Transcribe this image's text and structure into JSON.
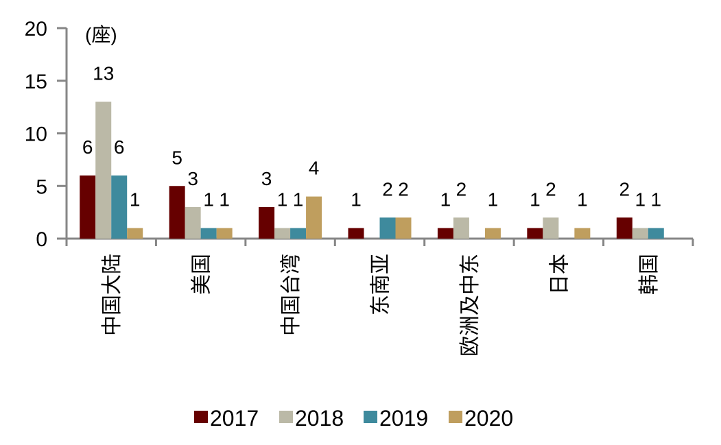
{
  "chart_data": {
    "type": "bar",
    "title": "",
    "unit_label": "(座)",
    "xlabel": "",
    "ylabel": "",
    "ylim": [
      0,
      20
    ],
    "yticks": [
      0,
      5,
      10,
      15,
      20
    ],
    "grid": false,
    "legend_position": "bottom",
    "categories": [
      "中国大陆",
      "美国",
      "中国台湾",
      "东南亚",
      "欧洲及中东",
      "日本",
      "韩国"
    ],
    "series": [
      {
        "name": "2017",
        "color": "#660000",
        "values": [
          6,
          5,
          3,
          1,
          1,
          1,
          2
        ]
      },
      {
        "name": "2018",
        "color": "#BBB9A7",
        "values": [
          13,
          3,
          1,
          0,
          2,
          2,
          1
        ]
      },
      {
        "name": "2019",
        "color": "#3E8A9D",
        "values": [
          6,
          1,
          1,
          2,
          0,
          0,
          1
        ]
      },
      {
        "name": "2020",
        "color": "#BF9E5E",
        "values": [
          1,
          1,
          4,
          2,
          1,
          1,
          0
        ]
      }
    ]
  }
}
